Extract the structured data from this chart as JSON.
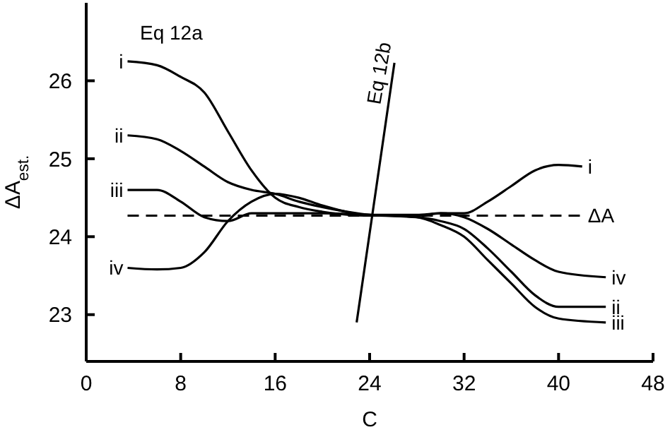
{
  "chart_data": {
    "type": "line",
    "xlabel": "C",
    "ylabel": "ΔA$_{est.}$",
    "xlim": [
      0,
      48
    ],
    "ylim": [
      22.4,
      27
    ],
    "xticks": [
      0,
      8,
      16,
      24,
      32,
      40,
      48
    ],
    "yticks": [
      23,
      24,
      25,
      26
    ],
    "marker": "none",
    "legend": "left",
    "annotations": [
      "Eq 12a"
    ],
    "series": [
      {
        "name": "i",
        "color": "#000000",
        "line_style": "solid",
        "x": [
          3.5,
          6,
          8,
          10,
          12,
          14,
          16,
          18,
          20,
          24,
          28,
          30,
          32,
          34,
          36,
          38,
          40,
          42
        ],
        "values": [
          26.25,
          26.2,
          26.05,
          25.85,
          25.35,
          24.85,
          24.5,
          24.38,
          24.32,
          24.27,
          24.27,
          24.3,
          24.3,
          24.45,
          24.65,
          24.85,
          24.92,
          24.9
        ]
      },
      {
        "name": "ii",
        "color": "#000000",
        "line_style": "solid",
        "x": [
          3.5,
          6,
          8,
          10,
          12,
          14,
          16,
          18,
          20,
          24,
          28,
          30,
          32,
          34,
          36,
          38,
          40,
          44
        ],
        "values": [
          25.3,
          25.25,
          25.1,
          24.9,
          24.7,
          24.6,
          24.55,
          24.45,
          24.38,
          24.28,
          24.25,
          24.2,
          24.1,
          23.85,
          23.55,
          23.25,
          23.1,
          23.1
        ]
      },
      {
        "name": "iii",
        "color": "#000000",
        "line_style": "solid",
        "x": [
          3.5,
          6,
          8,
          10,
          12,
          14,
          16,
          20,
          24,
          28,
          30,
          32,
          34,
          36,
          38,
          40,
          44
        ],
        "values": [
          24.6,
          24.6,
          24.45,
          24.25,
          24.2,
          24.3,
          24.3,
          24.3,
          24.28,
          24.25,
          24.15,
          24.0,
          23.7,
          23.4,
          23.1,
          22.95,
          22.9
        ]
      },
      {
        "name": "iv",
        "color": "#000000",
        "line_style": "solid",
        "x": [
          3.5,
          6,
          8,
          10,
          12,
          14,
          16,
          18,
          20,
          24,
          28,
          30,
          32,
          34,
          36,
          38,
          40,
          44
        ],
        "values": [
          23.6,
          23.58,
          23.6,
          23.8,
          24.2,
          24.45,
          24.55,
          24.5,
          24.4,
          24.28,
          24.28,
          24.3,
          24.25,
          24.1,
          23.9,
          23.7,
          23.55,
          23.48
        ]
      },
      {
        "name": "ΔA",
        "color": "#000000",
        "line_style": "dashed",
        "x": [
          3.5,
          42
        ],
        "values": [
          24.27,
          24.27
        ]
      },
      {
        "name": "Eq 12b",
        "color": "#000000",
        "line_style": "solid",
        "x": [
          22.9,
          26.1
        ],
        "values": [
          22.9,
          26.23
        ]
      }
    ]
  }
}
